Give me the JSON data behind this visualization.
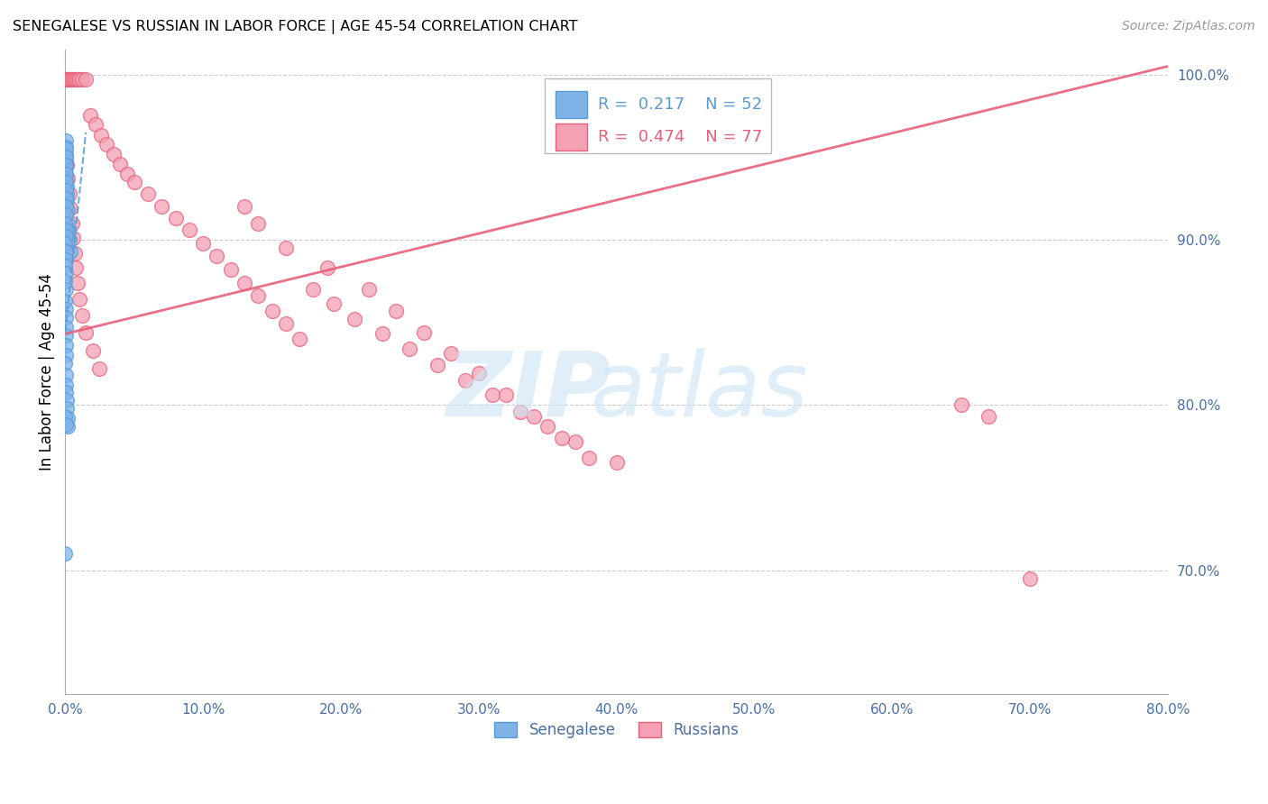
{
  "title": "SENEGALESE VS RUSSIAN IN LABOR FORCE | AGE 45-54 CORRELATION CHART",
  "source": "Source: ZipAtlas.com",
  "ylabel": "In Labor Force | Age 45-54",
  "x_tick_labels": [
    "0.0%",
    "10.0%",
    "20.0%",
    "30.0%",
    "40.0%",
    "50.0%",
    "60.0%",
    "70.0%",
    "80.0%"
  ],
  "y_tick_labels_right": [
    "70.0%",
    "80.0%",
    "90.0%",
    "100.0%"
  ],
  "x_min": 0.0,
  "x_max": 0.8,
  "y_min": 0.625,
  "y_max": 1.015,
  "legend_label1": "Senegalese",
  "legend_label2": "Russians",
  "R_blue": 0.217,
  "N_blue": 52,
  "R_pink": 0.474,
  "N_pink": 77,
  "blue_color": "#7fb3e8",
  "pink_color": "#f4a0b5",
  "trend_blue_color": "#5a9bd5",
  "trend_pink_color": "#e8607a",
  "grid_color": "#cccccc",
  "axis_color": "#4a6fa5",
  "blue_trend_x0": 0.0,
  "blue_trend_y0": 0.844,
  "blue_trend_x1": 0.015,
  "blue_trend_y1": 0.965,
  "pink_trend_x0": 0.0,
  "pink_trend_y0": 0.843,
  "pink_trend_x1": 0.8,
  "pink_trend_y1": 1.005,
  "blue_x": [
    0.0002,
    0.0003,
    0.0004,
    0.0005,
    0.0006,
    0.0007,
    0.0008,
    0.0009,
    0.001,
    0.0012,
    0.0015,
    0.002,
    0.0025,
    0.003,
    0.004,
    0.0002,
    0.0003,
    0.0004,
    0.0005,
    0.0006,
    0.0002,
    0.0003,
    0.0004,
    0.0005,
    0.0001,
    0.0002,
    0.0003,
    0.0001,
    0.0002,
    0.0003,
    0.0001,
    0.0002,
    0.0001,
    0.0002,
    0.0001,
    0.0003,
    0.0005,
    0.0002,
    0.0004,
    0.0003,
    0.0005,
    0.0001,
    0.0004,
    0.0006,
    0.0008,
    0.001,
    0.0012,
    0.0015,
    0.0018,
    0.0,
    0.0001,
    0.0002
  ],
  "blue_y": [
    0.96,
    0.956,
    0.952,
    0.948,
    0.944,
    0.94,
    0.936,
    0.932,
    0.928,
    0.924,
    0.918,
    0.91,
    0.905,
    0.9,
    0.893,
    0.955,
    0.95,
    0.945,
    0.94,
    0.935,
    0.93,
    0.925,
    0.92,
    0.915,
    0.91,
    0.906,
    0.902,
    0.898,
    0.893,
    0.888,
    0.884,
    0.88,
    0.875,
    0.87,
    0.863,
    0.858,
    0.853,
    0.847,
    0.842,
    0.836,
    0.83,
    0.825,
    0.818,
    0.812,
    0.808,
    0.803,
    0.798,
    0.792,
    0.787,
    0.71,
    0.793,
    0.788
  ],
  "pink_x": [
    0.0002,
    0.0005,
    0.001,
    0.0015,
    0.002,
    0.003,
    0.004,
    0.005,
    0.006,
    0.007,
    0.008,
    0.009,
    0.01,
    0.012,
    0.015,
    0.018,
    0.022,
    0.026,
    0.03,
    0.035,
    0.04,
    0.045,
    0.05,
    0.06,
    0.07,
    0.08,
    0.09,
    0.1,
    0.11,
    0.12,
    0.13,
    0.14,
    0.15,
    0.16,
    0.17,
    0.18,
    0.195,
    0.21,
    0.23,
    0.25,
    0.27,
    0.29,
    0.31,
    0.33,
    0.35,
    0.37,
    0.4,
    0.13,
    0.14,
    0.16,
    0.19,
    0.22,
    0.24,
    0.26,
    0.28,
    0.3,
    0.32,
    0.34,
    0.36,
    0.38,
    0.001,
    0.002,
    0.003,
    0.004,
    0.005,
    0.006,
    0.007,
    0.008,
    0.009,
    0.01,
    0.012,
    0.015,
    0.02,
    0.025,
    0.65,
    0.67,
    0.7
  ],
  "pink_y": [
    0.997,
    0.997,
    0.997,
    0.997,
    0.997,
    0.997,
    0.997,
    0.997,
    0.997,
    0.997,
    0.997,
    0.997,
    0.997,
    0.997,
    0.997,
    0.975,
    0.97,
    0.963,
    0.958,
    0.952,
    0.946,
    0.94,
    0.935,
    0.928,
    0.92,
    0.913,
    0.906,
    0.898,
    0.89,
    0.882,
    0.874,
    0.866,
    0.857,
    0.849,
    0.84,
    0.87,
    0.861,
    0.852,
    0.843,
    0.834,
    0.824,
    0.815,
    0.806,
    0.796,
    0.787,
    0.778,
    0.765,
    0.92,
    0.91,
    0.895,
    0.883,
    0.87,
    0.857,
    0.844,
    0.831,
    0.819,
    0.806,
    0.793,
    0.78,
    0.768,
    0.945,
    0.937,
    0.928,
    0.919,
    0.91,
    0.901,
    0.892,
    0.883,
    0.874,
    0.864,
    0.854,
    0.844,
    0.833,
    0.822,
    0.8,
    0.793,
    0.695
  ]
}
